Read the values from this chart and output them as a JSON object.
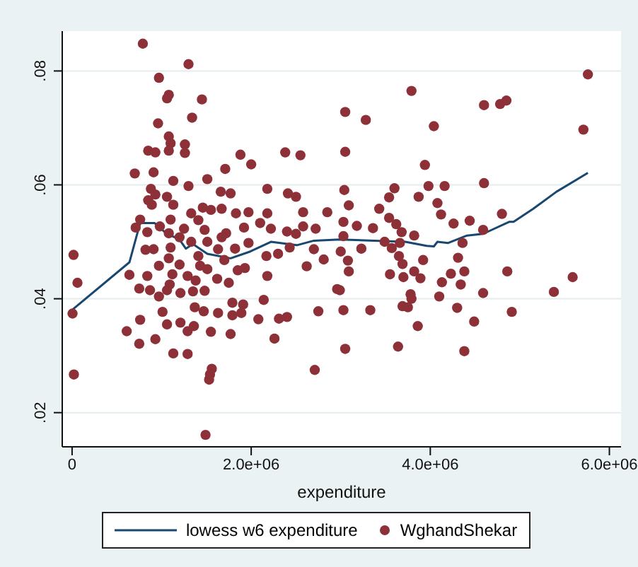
{
  "chart_data": {
    "type": "scatter",
    "xlabel": "expenditure",
    "xlim": [
      -110000,
      6130000
    ],
    "xticks": [
      0,
      {
        "value": 2000000,
        "label": "2.0e+06"
      },
      {
        "value": 4000000,
        "label": "4.0e+06"
      },
      {
        "value": 6000000,
        "label": "6.0e+06"
      }
    ],
    "ylim": [
      0.014,
      0.087
    ],
    "yticks": [
      {
        "value": 0.02,
        "label": ".02"
      },
      {
        "value": 0.04,
        "label": ".04"
      },
      {
        "value": 0.06,
        "label": ".06"
      },
      {
        "value": 0.08,
        "label": ".08"
      }
    ],
    "grid": "y",
    "legend": "bottom",
    "series": [
      {
        "name": "lowess w6 expenditure",
        "type": "line",
        "marker": "none",
        "line_style": "solid",
        "color": "#1a476f",
        "x": [
          5000,
          640000,
          760000,
          920000,
          1050000,
          1200000,
          1270000,
          1350000,
          1510000,
          1770000,
          1990000,
          2220000,
          2510000,
          2700000,
          2990000,
          3720000,
          3960000,
          4040000,
          4080000,
          4200000,
          4410000,
          4590000,
          4880000,
          4930000,
          5150000,
          5410000,
          5760000
        ],
        "values": [
          0.0381,
          0.0464,
          0.0533,
          0.0533,
          0.0515,
          0.0504,
          0.0488,
          0.0496,
          0.0479,
          0.0471,
          0.0483,
          0.05,
          0.0494,
          0.0502,
          0.0504,
          0.05,
          0.0493,
          0.0492,
          0.05,
          0.0498,
          0.0511,
          0.0514,
          0.0535,
          0.0535,
          0.0558,
          0.0588,
          0.0621
        ]
      },
      {
        "name": "WghandShekar",
        "marker": "circle",
        "color": "#8e3037",
        "x": [
          790000,
          1300000,
          970000,
          1080000,
          1060000,
          1450000,
          1340000,
          960000,
          1080000,
          1100000,
          1260000,
          850000,
          930000,
          1080000,
          1260000,
          1880000,
          2380000,
          2550000,
          2000000,
          1710000,
          700000,
          910000,
          1510000,
          1130000,
          1300000,
          880000,
          1660000,
          1770000,
          2180000,
          2410000,
          2500000,
          1060000,
          930000,
          850000,
          890000,
          1130000,
          1460000,
          1550000,
          1670000,
          1330000,
          1830000,
          1970000,
          2180000,
          2580000,
          2850000,
          760000,
          1100000,
          1410000,
          710000,
          980000,
          840000,
          1080000,
          1250000,
          1480000,
          1720000,
          1920000,
          2100000,
          2220000,
          2400000,
          2580000,
          2720000,
          2500000,
          1200000,
          1330000,
          1510000,
          1670000,
          1970000,
          820000,
          910000,
          1100000,
          1630000,
          1820000,
          2170000,
          2300000,
          2430000,
          2700000,
          2810000,
          16000,
          1080000,
          1410000,
          1700000,
          970000,
          1200000,
          1430000,
          1510000,
          1850000,
          1930000,
          2620000,
          640000,
          840000,
          1120000,
          1290000,
          1620000,
          2180000,
          60000,
          1090000,
          1380000,
          1750000,
          750000,
          870000,
          1060000,
          1210000,
          1350000,
          1480000,
          970000,
          1790000,
          1910000,
          2140000,
          2960000,
          5000,
          1010000,
          1470000,
          1630000,
          1790000,
          1890000,
          2750000,
          760000,
          1370000,
          2080000,
          2310000,
          2400000,
          1060000,
          1210000,
          1360000,
          610000,
          1290000,
          1550000,
          1770000,
          750000,
          930000,
          2260000,
          1130000,
          1290000,
          1560000,
          1540000,
          1530000,
          2710000,
          20000,
          1490000,
          5760000,
          3790000,
          3050000,
          4600000,
          4780000,
          4850000,
          3280000,
          4040000,
          5710000,
          3050000,
          3940000,
          3040000,
          3980000,
          4160000,
          4600000,
          3600000,
          3540000,
          3870000,
          3090000,
          3430000,
          4080000,
          4120000,
          4800000,
          3030000,
          3540000,
          3180000,
          3360000,
          3620000,
          4260000,
          4440000,
          3680000,
          3820000,
          4590000,
          3030000,
          3490000,
          3660000,
          4360000,
          3000000,
          3230000,
          3570000,
          3080000,
          3650000,
          4310000,
          3920000,
          3690000,
          3090000,
          3550000,
          3700000,
          3820000,
          3890000,
          4230000,
          4380000,
          4860000,
          4130000,
          4340000,
          5590000,
          5380000,
          2990000,
          3780000,
          4590000,
          4100000,
          3790000,
          3690000,
          3750000,
          3030000,
          3330000,
          4300000,
          4910000,
          3860000,
          4490000,
          3050000,
          3640000,
          4380000
        ],
        "values": [
          0.0848,
          0.0812,
          0.0788,
          0.0758,
          0.0752,
          0.075,
          0.0718,
          0.0708,
          0.0685,
          0.0673,
          0.0671,
          0.066,
          0.0657,
          0.066,
          0.0656,
          0.0653,
          0.0657,
          0.0652,
          0.0636,
          0.0628,
          0.062,
          0.0622,
          0.061,
          0.0607,
          0.0598,
          0.0593,
          0.0588,
          0.0585,
          0.0593,
          0.0585,
          0.0579,
          0.0579,
          0.0583,
          0.0573,
          0.0565,
          0.0565,
          0.056,
          0.0556,
          0.0558,
          0.055,
          0.055,
          0.0552,
          0.055,
          0.0552,
          0.0552,
          0.0539,
          0.0539,
          0.0538,
          0.0525,
          0.0527,
          0.0517,
          0.0515,
          0.0523,
          0.0521,
          0.0515,
          0.0525,
          0.0533,
          0.0523,
          0.0518,
          0.0527,
          0.0523,
          0.0514,
          0.0508,
          0.05,
          0.05,
          0.0508,
          0.0498,
          0.0486,
          0.0487,
          0.049,
          0.0487,
          0.0488,
          0.0475,
          0.0479,
          0.049,
          0.0487,
          0.0469,
          0.0477,
          0.0471,
          0.0475,
          0.0468,
          0.0458,
          0.046,
          0.0458,
          0.0452,
          0.045,
          0.0454,
          0.0457,
          0.0442,
          0.044,
          0.0443,
          0.044,
          0.0435,
          0.044,
          0.0428,
          0.0425,
          0.0432,
          0.0428,
          0.0418,
          0.0415,
          0.0415,
          0.041,
          0.0413,
          0.0414,
          0.0404,
          0.0393,
          0.039,
          0.0398,
          0.0417,
          0.0374,
          0.0377,
          0.0378,
          0.0375,
          0.0371,
          0.0375,
          0.0378,
          0.0363,
          0.0385,
          0.0364,
          0.0365,
          0.0368,
          0.0355,
          0.0358,
          0.0352,
          0.0343,
          0.0343,
          0.0342,
          0.0338,
          0.0321,
          0.0329,
          0.033,
          0.0304,
          0.0303,
          0.0277,
          0.0267,
          0.0258,
          0.0275,
          0.0267,
          0.0161,
          0.0794,
          0.0765,
          0.0728,
          0.074,
          0.0742,
          0.0748,
          0.0714,
          0.0703,
          0.0697,
          0.0658,
          0.0635,
          0.0591,
          0.0598,
          0.0598,
          0.0603,
          0.0594,
          0.0578,
          0.0579,
          0.0564,
          0.0558,
          0.0568,
          0.0548,
          0.0549,
          0.0535,
          0.0542,
          0.0528,
          0.0524,
          0.0531,
          0.0532,
          0.0537,
          0.0517,
          0.0511,
          0.0521,
          0.051,
          0.05,
          0.0498,
          0.0498,
          0.0483,
          0.0488,
          0.0489,
          0.0467,
          0.0475,
          0.0472,
          0.0468,
          0.0461,
          0.0448,
          0.0443,
          0.0438,
          0.0448,
          0.0436,
          0.0444,
          0.0448,
          0.0448,
          0.0429,
          0.0425,
          0.0438,
          0.0412,
          0.0415,
          0.0408,
          0.041,
          0.0404,
          0.04,
          0.0387,
          0.0385,
          0.038,
          0.038,
          0.0384,
          0.0377,
          0.0352,
          0.036,
          0.0312,
          0.0316,
          0.0308
        ]
      }
    ]
  }
}
